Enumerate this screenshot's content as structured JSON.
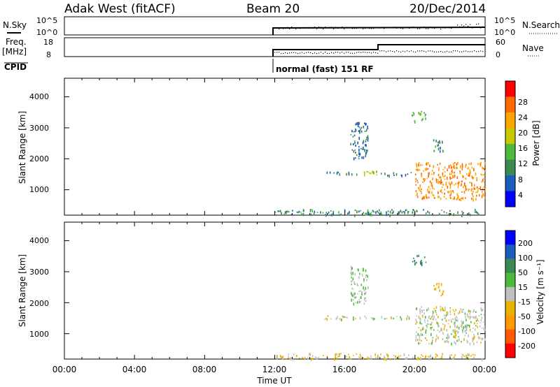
{
  "header": {
    "station": "Adak West (fitACF)",
    "beam": "Beam 20",
    "date": "20/Dec/2014"
  },
  "status_panels": {
    "nsky_label": "N.Sky",
    "nsearch_label": "N.Search",
    "noise_ticks": [
      "10^5",
      "10^0"
    ],
    "freq_label_top": "Freq.",
    "freq_label_unit": "[MHz]",
    "freq_ticks": [
      "18",
      "8"
    ],
    "nave_label": "Nave",
    "nave_ticks": [
      "60",
      "0"
    ],
    "cpid_label": "CPID",
    "cpid_text": "normal (fast) 151 RF"
  },
  "x_axis": {
    "label": "Time UT",
    "ticks": [
      "00:00",
      "04:00",
      "08:00",
      "12:00",
      "16:00",
      "20:00",
      "00:00"
    ]
  },
  "power_panel": {
    "ylabel": "Slant Range [km]",
    "yticks": [
      "1000",
      "2000",
      "3000",
      "4000"
    ],
    "colorbar_label": "Power [dB]",
    "colorbar_ticks": [
      "4",
      "8",
      "12",
      "16",
      "20",
      "24",
      "28"
    ]
  },
  "velocity_panel": {
    "ylabel": "Slant Range [km]",
    "yticks": [
      "1000",
      "2000",
      "3000",
      "4000"
    ],
    "colorbar_label": "Velocity [m s⁻¹]",
    "colorbar_ticks": [
      "200",
      "100",
      "50",
      "15",
      "-15",
      "-50",
      "-100",
      "-200"
    ]
  },
  "chart_data": [
    {
      "type": "heatmap",
      "title": "Power",
      "xlabel": "Time UT",
      "ylabel": "Slant Range [km]",
      "xlim": [
        0,
        24
      ],
      "ylim": [
        180,
        4600
      ],
      "colorbar": {
        "label": "Power [dB]",
        "range": [
          0,
          32
        ],
        "colors": [
          "#0000ff",
          "#1a5cb8",
          "#3b8a52",
          "#4dbb3b",
          "#c8c800",
          "#ffa500",
          "#ff6a00",
          "#ff0000"
        ]
      },
      "regions": [
        {
          "t": [
            12.0,
            24.0
          ],
          "r": [
            200,
            380
          ],
          "value": 10
        },
        {
          "t": [
            14.8,
            17.0
          ],
          "r": [
            1520,
            1600
          ],
          "value": 9
        },
        {
          "t": [
            17.0,
            17.8
          ],
          "r": [
            1500,
            1620
          ],
          "value": 18
        },
        {
          "t": [
            18.0,
            19.8
          ],
          "r": [
            1480,
            1580
          ],
          "value": 8
        },
        {
          "t": [
            16.3,
            17.3
          ],
          "r": [
            2000,
            3200
          ],
          "value": 7
        },
        {
          "t": [
            19.8,
            20.6
          ],
          "r": [
            3200,
            3550
          ],
          "value": 14
        },
        {
          "t": [
            20.0,
            24.0
          ],
          "r": [
            700,
            1900
          ],
          "value": 24
        },
        {
          "t": [
            21.0,
            21.6
          ],
          "r": [
            2250,
            2650
          ],
          "value": 10
        }
      ]
    },
    {
      "type": "heatmap",
      "title": "Velocity",
      "xlabel": "Time UT",
      "ylabel": "Slant Range [km]",
      "xlim": [
        0,
        24
      ],
      "ylim": [
        180,
        4600
      ],
      "colorbar": {
        "label": "Velocity [m s⁻¹]",
        "range": [
          -250,
          250
        ],
        "colors": [
          "#ff0000",
          "#ff5a00",
          "#ff9a00",
          "#e6b400",
          "#c0c0c0",
          "#4dbb3b",
          "#3b8a52",
          "#1a5cb8",
          "#0000ff"
        ]
      },
      "regions": [
        {
          "t": [
            12.0,
            24.0
          ],
          "r": [
            200,
            380
          ],
          "value": -40
        },
        {
          "t": [
            14.8,
            19.8
          ],
          "r": [
            1480,
            1600
          ],
          "value": 0
        },
        {
          "t": [
            16.3,
            17.3
          ],
          "r": [
            2000,
            3200
          ],
          "value": 25
        },
        {
          "t": [
            19.8,
            20.6
          ],
          "r": [
            3200,
            3550
          ],
          "value": 120
        },
        {
          "t": [
            20.0,
            24.0
          ],
          "r": [
            700,
            1900
          ],
          "value": 0
        },
        {
          "t": [
            21.0,
            21.6
          ],
          "r": [
            2250,
            2650
          ],
          "value": -80
        }
      ]
    }
  ]
}
